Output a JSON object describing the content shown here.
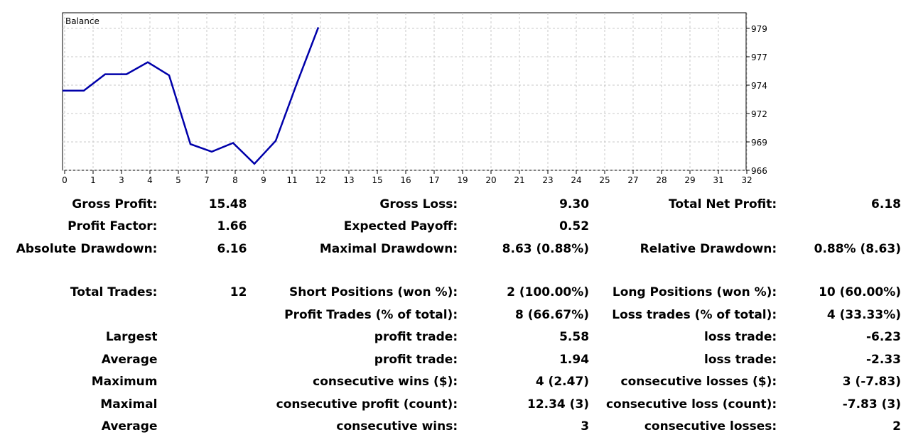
{
  "chart_data": {
    "type": "line",
    "title": "Balance",
    "x_ticks": [
      "0",
      "1",
      "3",
      "4",
      "5",
      "7",
      "8",
      "9",
      "11",
      "12",
      "13",
      "15",
      "16",
      "17",
      "19",
      "20",
      "21",
      "23",
      "24",
      "25",
      "27",
      "28",
      "29",
      "31",
      "32"
    ],
    "y_ticks": [
      "979",
      "977",
      "974",
      "972",
      "969",
      "966"
    ],
    "ylim": [
      966,
      980
    ],
    "xlim": [
      0,
      24
    ],
    "grid": true,
    "series": [
      {
        "name": "",
        "color": "#0000aa",
        "x": [
          0,
          1,
          2,
          3,
          4,
          5,
          6,
          7,
          8,
          9,
          10,
          11,
          12
        ],
        "y": [
          973.3,
          973.3,
          974.8,
          974.8,
          975.9,
          974.7,
          968.4,
          967.7,
          968.5,
          966.6,
          968.7,
          974.0,
          979.1
        ]
      }
    ]
  },
  "stats": {
    "rows": [
      [
        "Gross Profit:",
        "15.48",
        "Gross Loss:",
        "9.30",
        "Total Net Profit:",
        "6.18"
      ],
      [
        "Profit Factor:",
        "1.66",
        "Expected Payoff:",
        "0.52",
        "",
        ""
      ],
      [
        "Absolute Drawdown:",
        "6.16",
        "Maximal Drawdown:",
        "8.63 (0.88%)",
        "Relative Drawdown:",
        "0.88% (8.63)"
      ],
      null,
      [
        "Total Trades:",
        "12",
        "Short Positions (won %):",
        "2 (100.00%)",
        "Long Positions (won %):",
        "10 (60.00%)"
      ],
      [
        "",
        "",
        "Profit Trades (% of total):",
        "8 (66.67%)",
        "Loss trades (% of total):",
        "4 (33.33%)"
      ],
      [
        "Largest",
        "",
        "profit trade:",
        "5.58",
        "loss trade:",
        "-6.23"
      ],
      [
        "Average",
        "",
        "profit trade:",
        "1.94",
        "loss trade:",
        "-2.33"
      ],
      [
        "Maximum",
        "",
        "consecutive wins ($):",
        "4 (2.47)",
        "consecutive losses ($):",
        "3 (-7.83)"
      ],
      [
        "Maximal",
        "",
        "consecutive profit (count):",
        "12.34 (3)",
        "consecutive loss (count):",
        "-7.83 (3)"
      ],
      [
        "Average",
        "",
        "consecutive wins:",
        "3",
        "consecutive losses:",
        "2"
      ]
    ]
  }
}
